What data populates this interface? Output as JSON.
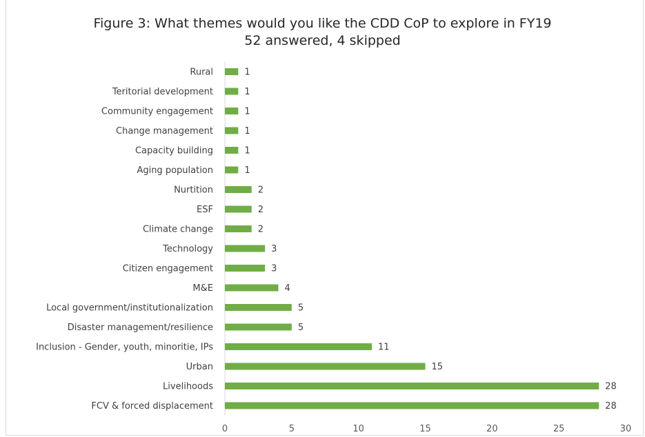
{
  "chart_data": {
    "type": "bar",
    "orientation": "horizontal",
    "title": "Figure 3: What themes would you like the CDD CoP to explore in FY19",
    "subtitle": "52 answered, 4 skipped",
    "categories": [
      "Rural",
      "Teritorial development",
      "Community engagement",
      "Change management",
      "Capacity building",
      "Aging population",
      "Nurtition",
      "ESF",
      "Climate change",
      "Technology",
      "Citizen engagement",
      "M&E",
      "Local government/institutionalization",
      "Disaster management/resilience",
      "Inclusion - Gender, youth, minoritie, IPs",
      "Urban",
      "Livelihoods",
      "FCV & forced displacement"
    ],
    "values": [
      1,
      1,
      1,
      1,
      1,
      1,
      2,
      2,
      2,
      3,
      3,
      4,
      5,
      5,
      11,
      15,
      28,
      28
    ],
    "xlim": [
      0,
      30
    ],
    "xticks": [
      "0",
      "5",
      "10",
      "15",
      "20",
      "25",
      "30"
    ],
    "grid": false,
    "bar_color": "#70ad47",
    "legend": "none"
  }
}
